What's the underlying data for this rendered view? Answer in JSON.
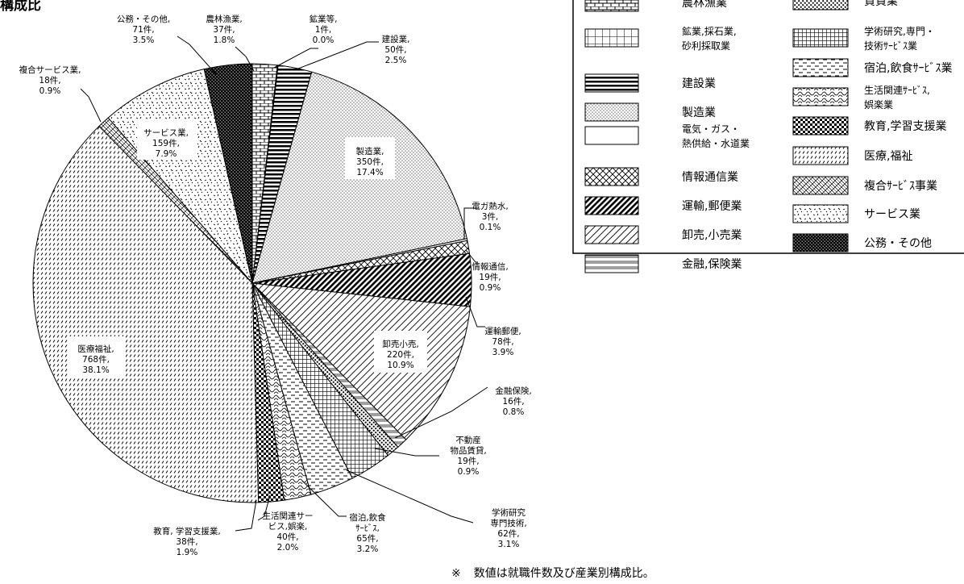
{
  "page": {
    "title_fragment": "構成比",
    "footnote_mark": "※",
    "footnote": "数値は就職件数及び産業別構成比。"
  },
  "chart_data": {
    "type": "pie",
    "slices": [
      {
        "key": "nourin",
        "legend": "農林漁業",
        "label": [
          "農林漁業,",
          "37件,",
          "1.8%"
        ],
        "count": 37,
        "pct": 1.8,
        "pattern": "brick"
      },
      {
        "key": "kogyo",
        "legend": "鉱業,採石業,砂利採取業",
        "label": [
          "鉱業等,",
          "1件,",
          "0.0%"
        ],
        "count": 1,
        "pct": 0.0,
        "pattern": "grid"
      },
      {
        "key": "kensetsu",
        "legend": "建設業",
        "label": [
          "建設業,",
          "50件,",
          "2.5%"
        ],
        "count": 50,
        "pct": 2.5,
        "pattern": "hstripes"
      },
      {
        "key": "seizo",
        "legend": "製造業",
        "label": [
          "製造業,",
          "350件,",
          "17.4%"
        ],
        "count": 350,
        "pct": 17.4,
        "pattern": "dots"
      },
      {
        "key": "denki",
        "legend": "電気・ガス・熱供給・水道業",
        "label": [
          "電ガ熱水,",
          "3件,",
          "0.1%"
        ],
        "count": 3,
        "pct": 0.1,
        "pattern": "white"
      },
      {
        "key": "joho",
        "legend": "情報通信業",
        "label": [
          "情報通信,",
          "19件,",
          "0.9%"
        ],
        "count": 19,
        "pct": 0.9,
        "pattern": "crosshatch"
      },
      {
        "key": "unyu",
        "legend": "運輸,郵便業",
        "label": [
          "運輸郵便,",
          "78件,",
          "3.9%"
        ],
        "count": 78,
        "pct": 3.9,
        "pattern": "densediag"
      },
      {
        "key": "oroshi",
        "legend": "卸売,小売業",
        "label": [
          "卸売小売,",
          "220件,",
          "10.9%"
        ],
        "count": 220,
        "pct": 10.9,
        "pattern": "widediag"
      },
      {
        "key": "kinyu",
        "legend": "金融,保険業",
        "label": [
          "金融保険,",
          "16件,",
          "0.8%"
        ],
        "count": 16,
        "pct": 0.8,
        "pattern": "doubleline"
      },
      {
        "key": "fudosan",
        "legend": "不動産業,物品賃貸業",
        "label": [
          "不動産",
          "物品賃貸,",
          "19件,",
          "0.9%"
        ],
        "count": 19,
        "pct": 0.9,
        "pattern": "coarsedots"
      },
      {
        "key": "gakujutsu",
        "legend": "学術研究,専門・技術サービス業",
        "label": [
          "学術研究",
          "専門技術,",
          "62件,",
          "3.1%"
        ],
        "count": 62,
        "pct": 3.1,
        "pattern": "finegrid"
      },
      {
        "key": "shukuhaku",
        "legend": "宿泊,飲食サービス業",
        "label": [
          "宿泊,飲食",
          "ｻｰﾋﾞｽ,",
          "65件,",
          "3.2%"
        ],
        "count": 65,
        "pct": 3.2,
        "pattern": "dashes"
      },
      {
        "key": "seikatsu",
        "legend": "生活関連サービス,娯楽業",
        "label": [
          "生活関連サー",
          "ビス,娯楽,",
          "40件,",
          "2.0%"
        ],
        "count": 40,
        "pct": 2.0,
        "pattern": "scallop"
      },
      {
        "key": "kyoiku",
        "legend": "教育,学習支援業",
        "label": [
          "教育, 学習支援業,",
          "38件,",
          "1.9%"
        ],
        "count": 38,
        "pct": 1.9,
        "pattern": "checker"
      },
      {
        "key": "iryo",
        "legend": "医療,福祉",
        "label": [
          "医療福祉,",
          "768件,",
          "38.1%"
        ],
        "count": 768,
        "pct": 38.1,
        "pattern": "slashrows"
      },
      {
        "key": "fukugo",
        "legend": "複合サービス事業",
        "label": [
          "複合サービス業,",
          "18件,",
          "0.9%"
        ],
        "count": 18,
        "pct": 0.9,
        "pattern": "weave"
      },
      {
        "key": "service",
        "legend": "サービス業",
        "label": [
          "サービス業,",
          "159件,",
          "7.9%"
        ],
        "count": 159,
        "pct": 7.9,
        "pattern": "confetti"
      },
      {
        "key": "komu",
        "legend": "公務・その他",
        "label": [
          "公務・その他,",
          "71件,",
          "3.5%"
        ],
        "count": 71,
        "pct": 3.5,
        "pattern": "blackcheck"
      }
    ],
    "legend": {
      "left": [
        {
          "lines": [
            "農林漁業"
          ],
          "pattern": "brick"
        },
        {
          "lines": [
            "鉱業,採石業,",
            "砂利採取業"
          ],
          "pattern": "grid"
        },
        {
          "lines": [
            "建設業"
          ],
          "pattern": "hstripes"
        },
        {
          "lines": [
            "製造業"
          ],
          "pattern": "dots"
        },
        {
          "lines": [
            "電気・ガス・",
            "熱供給・水道業"
          ],
          "pattern": "white"
        },
        {
          "lines": [
            "情報通信業"
          ],
          "pattern": "crosshatch"
        },
        {
          "lines": [
            "運輸,郵便業"
          ],
          "pattern": "densediag"
        },
        {
          "lines": [
            "卸売,小売業"
          ],
          "pattern": "widediag"
        },
        {
          "lines": [
            "金融,保険業"
          ],
          "pattern": "doubleline"
        }
      ],
      "right": [
        {
          "lines": [
            "賃貸業"
          ],
          "pattern": "coarsedots"
        },
        {
          "lines": [
            "学術研究,専門・",
            "技術ｻｰﾋﾞｽ業"
          ],
          "pattern": "finegrid"
        },
        {
          "lines": [
            "宿泊,飲食ｻｰﾋﾞｽ業"
          ],
          "pattern": "dashes"
        },
        {
          "lines": [
            "生活関連ｻｰﾋﾞｽ,",
            "娯楽業"
          ],
          "pattern": "scallop"
        },
        {
          "lines": [
            "教育,学習支援業"
          ],
          "pattern": "checker"
        },
        {
          "lines": [
            "医療,福祉"
          ],
          "pattern": "slashrows"
        },
        {
          "lines": [
            "複合ｻｰﾋﾞｽ事業"
          ],
          "pattern": "weave"
        },
        {
          "lines": [
            "サービス業"
          ],
          "pattern": "confetti"
        },
        {
          "lines": [
            "公務・その他"
          ],
          "pattern": "blackcheck"
        }
      ]
    }
  }
}
